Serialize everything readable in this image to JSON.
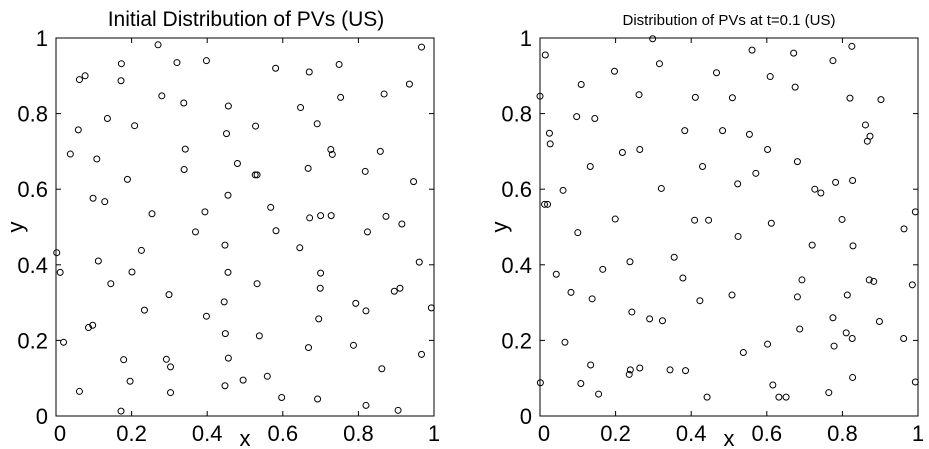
{
  "colors": {
    "marker": "#000000",
    "background": "#ffffff",
    "axes": "#000000"
  },
  "chart_data": [
    {
      "type": "scatter",
      "title": "Initial Distribution of PVs (US)",
      "xlabel": "x",
      "ylabel": "y",
      "xlim": [
        0,
        1
      ],
      "ylim": [
        0,
        1
      ],
      "xticks": [
        "0",
        "0.2",
        "0.4",
        "0.6",
        "0.8",
        "1"
      ],
      "yticks": [
        "0",
        "0.2",
        "0.4",
        "0.6",
        "0.8",
        "1"
      ],
      "grid": false,
      "marker": "open-circle",
      "x": [
        0.27,
        0.02,
        0.062,
        0.077,
        0.173,
        0.32,
        0.398,
        0.581,
        0.749,
        0.967,
        0.059,
        0.172,
        0.28,
        0.456,
        0.528,
        0.647,
        0.67,
        0.727,
        0.753,
        0.935,
        0.868,
        0.136,
        0.208,
        0.338,
        0.451,
        0.527,
        0.691,
        0.038,
        0.342,
        0.731,
        0.108,
        0.48,
        0.532,
        0.667,
        0.189,
        0.339,
        0.728,
        0.818,
        0.858,
        0.946,
        0.098,
        0.129,
        0.394,
        0.455,
        0.568,
        0.254,
        0.873,
        0.369,
        0.915,
        0.226,
        0.447,
        0.671,
        0.7,
        0.824,
        0.582,
        0.002,
        0.112,
        0.445,
        0.645,
        0.7,
        0.961,
        0.145,
        0.532,
        0.699,
        0.993,
        0.793,
        0.201,
        0.299,
        0.895,
        0.91,
        0.097,
        0.086,
        0.234,
        0.398,
        0.448,
        0.695,
        0.82,
        0.456,
        0.538,
        0.668,
        0.787,
        0.179,
        0.292,
        0.303,
        0.559,
        0.862,
        0.967,
        0.196,
        0.447,
        0.495,
        0.303,
        0.597,
        0.062,
        0.455,
        0.692,
        0.82,
        0.172,
        0.905,
        0.011
      ],
      "y": [
        0.982,
        0.195,
        0.89,
        0.9,
        0.932,
        0.935,
        0.94,
        0.92,
        0.93,
        0.976,
        0.757,
        0.887,
        0.847,
        0.82,
        0.767,
        0.816,
        0.91,
        0.705,
        0.843,
        0.878,
        0.852,
        0.787,
        0.768,
        0.828,
        0.747,
        0.638,
        0.773,
        0.693,
        0.706,
        0.692,
        0.68,
        0.668,
        0.638,
        0.655,
        0.626,
        0.652,
        0.53,
        0.647,
        0.7,
        0.62,
        0.576,
        0.567,
        0.54,
        0.584,
        0.552,
        0.535,
        0.528,
        0.487,
        0.508,
        0.438,
        0.452,
        0.524,
        0.53,
        0.487,
        0.49,
        0.432,
        0.41,
        0.302,
        0.445,
        0.378,
        0.407,
        0.35,
        0.35,
        0.338,
        0.286,
        0.298,
        0.381,
        0.321,
        0.33,
        0.338,
        0.24,
        0.234,
        0.28,
        0.264,
        0.218,
        0.257,
        0.278,
        0.153,
        0.212,
        0.181,
        0.187,
        0.149,
        0.15,
        0.13,
        0.105,
        0.125,
        0.163,
        0.092,
        0.08,
        0.095,
        0.062,
        0.049,
        0.065,
        0.38,
        0.045,
        0.028,
        0.013,
        0.015,
        0.38
      ]
    },
    {
      "type": "scatter",
      "title": "Distribution of PVs at t=0.1 (US)",
      "xlabel": "x",
      "ylabel": "y",
      "xlim": [
        0,
        1
      ],
      "ylim": [
        0,
        1
      ],
      "xticks": [
        "0",
        "0.2",
        "0.4",
        "0.6",
        "0.8",
        "1"
      ],
      "yticks": [
        "0",
        "0.2",
        "0.4",
        "0.6",
        "0.8",
        "1"
      ],
      "grid": false,
      "marker": "open-circle",
      "x": [
        0.298,
        0.014,
        0.109,
        0.197,
        0.316,
        0.561,
        0.609,
        0.671,
        0.775,
        0.825,
        0.0,
        0.097,
        0.411,
        0.467,
        0.509,
        0.675,
        0.82,
        0.873,
        0.902,
        0.145,
        0.262,
        0.383,
        0.483,
        0.554,
        0.02,
        0.027,
        0.861,
        0.012,
        0.218,
        0.264,
        0.43,
        0.602,
        0.681,
        0.133,
        0.321,
        0.571,
        0.727,
        0.743,
        0.782,
        0.799,
        0.827,
        0.061,
        0.199,
        0.409,
        0.446,
        0.523,
        0.612,
        0.813,
        0.866,
        0.993,
        0.1,
        0.524,
        0.693,
        0.963,
        0.082,
        0.166,
        0.238,
        0.378,
        0.72,
        0.828,
        0.355,
        0.243,
        0.871,
        0.883,
        0.985,
        0.681,
        0.29,
        0.324,
        0.508,
        0.138,
        0.423,
        0.775,
        0.81,
        0.898,
        0.239,
        0.264,
        0.687,
        0.826,
        0.043,
        0.602,
        0.778,
        0.962,
        0.344,
        0.066,
        0.001,
        0.134,
        0.538,
        0.385,
        0.827,
        0.108,
        0.155,
        0.236,
        0.442,
        0.616,
        0.632,
        0.651,
        0.764,
        0.993,
        0.025
      ],
      "y": [
        0.998,
        0.955,
        0.877,
        0.912,
        0.932,
        0.968,
        0.898,
        0.96,
        0.94,
        0.978,
        0.846,
        0.792,
        0.843,
        0.908,
        0.842,
        0.87,
        0.841,
        0.74,
        0.837,
        0.787,
        0.85,
        0.755,
        0.755,
        0.745,
        0.56,
        0.72,
        0.77,
        0.56,
        0.697,
        0.705,
        0.66,
        0.705,
        0.673,
        0.66,
        0.602,
        0.642,
        0.6,
        0.59,
        0.618,
        0.52,
        0.623,
        0.597,
        0.521,
        0.518,
        0.518,
        0.614,
        0.51,
        0.32,
        0.727,
        0.54,
        0.485,
        0.475,
        0.36,
        0.495,
        0.327,
        0.388,
        0.408,
        0.365,
        0.452,
        0.45,
        0.42,
        0.275,
        0.36,
        0.356,
        0.347,
        0.315,
        0.257,
        0.252,
        0.32,
        0.31,
        0.305,
        0.26,
        0.22,
        0.25,
        0.122,
        0.127,
        0.23,
        0.205,
        0.375,
        0.19,
        0.185,
        0.205,
        0.122,
        0.195,
        0.088,
        0.135,
        0.168,
        0.12,
        0.102,
        0.086,
        0.058,
        0.11,
        0.05,
        0.082,
        0.05,
        0.05,
        0.062,
        0.09,
        0.748
      ]
    }
  ]
}
